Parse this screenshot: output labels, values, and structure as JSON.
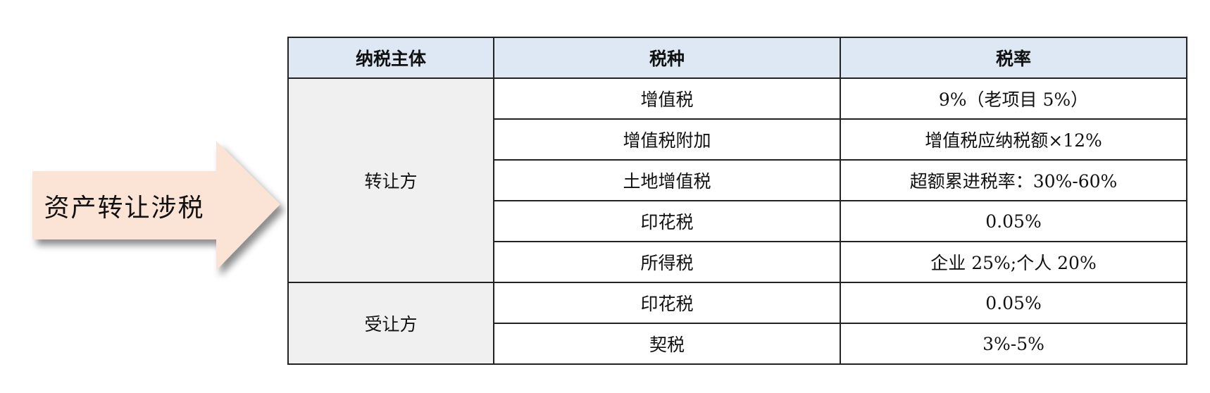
{
  "arrow_label": "资产转让涉税",
  "colors": {
    "arrow_fill": "#fbe3d6",
    "header_bg": "#dde8f4",
    "party_bg": "#f0f0f0"
  },
  "table": {
    "headers": [
      "纳税主体",
      "税种",
      "税率"
    ],
    "groups": [
      {
        "party": "转让方",
        "rows": [
          {
            "tax": "增值税",
            "rate": "9%（老项目 5%）"
          },
          {
            "tax": "增值税附加",
            "rate": "增值税应纳税额×12%"
          },
          {
            "tax": "土地增值税",
            "rate": "超额累进税率：30%-60%"
          },
          {
            "tax": "印花税",
            "rate": "0.05%"
          },
          {
            "tax": "所得税",
            "rate": "企业 25%;个人 20%"
          }
        ]
      },
      {
        "party": "受让方",
        "rows": [
          {
            "tax": "印花税",
            "rate": "0.05%"
          },
          {
            "tax": "契税",
            "rate": "3%-5%"
          }
        ]
      }
    ]
  }
}
